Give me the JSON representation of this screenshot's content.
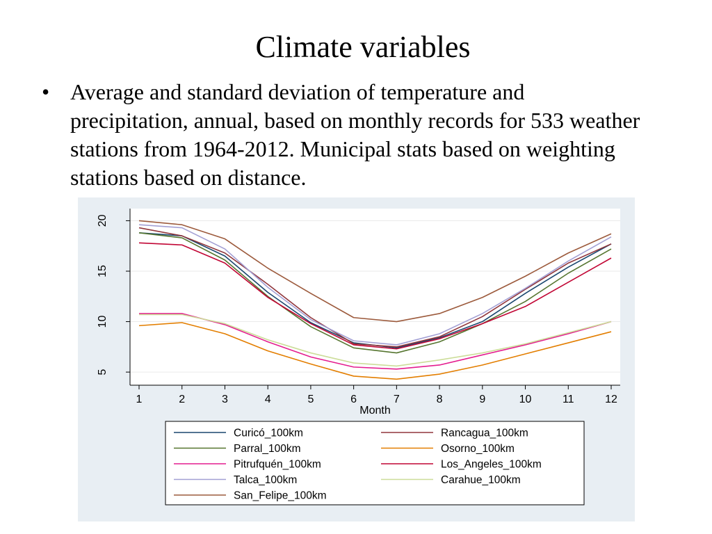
{
  "slide": {
    "title": "Climate variables",
    "bullet": "Average and standard deviation of temperature and precipitation, annual, based on monthly records for 533 weather stations from 1964-2012. Municipal stats based on weighting stations based on distance."
  },
  "chart_data": {
    "type": "line",
    "title": "",
    "xlabel": "Month",
    "ylabel": "",
    "x": [
      1,
      2,
      3,
      4,
      5,
      6,
      7,
      8,
      9,
      10,
      11,
      12
    ],
    "xlim": [
      1,
      12
    ],
    "ylim": [
      3.7,
      21.2
    ],
    "yticks": [
      5,
      10,
      15,
      20
    ],
    "grid": true,
    "legend_position": "bottom",
    "series": [
      {
        "name": "Curicó_100km",
        "color": "#1a476f",
        "values": [
          18.8,
          18.5,
          16.5,
          12.9,
          9.9,
          7.9,
          7.4,
          8.4,
          10.0,
          12.8,
          15.4,
          17.7
        ]
      },
      {
        "name": "Rancagua_100km",
        "color": "#90353b",
        "values": [
          19.3,
          18.5,
          16.8,
          13.7,
          10.4,
          7.8,
          7.5,
          8.5,
          10.5,
          13.2,
          15.8,
          17.7
        ]
      },
      {
        "name": "Parral_100km",
        "color": "#55752f",
        "values": [
          18.8,
          18.3,
          16.1,
          12.5,
          9.5,
          7.4,
          6.9,
          8.0,
          9.8,
          12.0,
          14.8,
          17.2
        ]
      },
      {
        "name": "Osorno_100km",
        "color": "#e37e00",
        "values": [
          9.6,
          9.9,
          8.8,
          7.1,
          5.8,
          4.6,
          4.3,
          4.8,
          5.7,
          6.8,
          7.9,
          9.0
        ]
      },
      {
        "name": "Pitrufquén_100km",
        "color": "#e41d8f",
        "values": [
          10.8,
          10.8,
          9.7,
          8.0,
          6.5,
          5.5,
          5.3,
          5.7,
          6.7,
          7.7,
          8.8,
          10.0
        ]
      },
      {
        "name": "Los_Angeles_100km",
        "color": "#c10534",
        "values": [
          17.8,
          17.6,
          15.8,
          12.4,
          9.8,
          7.7,
          7.3,
          8.3,
          9.8,
          11.5,
          13.9,
          16.3
        ]
      },
      {
        "name": "Talca_100km",
        "color": "#a29fd4",
        "values": [
          19.6,
          19.3,
          17.2,
          13.4,
          10.2,
          8.1,
          7.7,
          8.8,
          10.8,
          13.3,
          16.0,
          18.4
        ]
      },
      {
        "name": "Carahue_100km",
        "color": "#ccdd99",
        "values": [
          10.7,
          10.7,
          9.8,
          8.2,
          6.9,
          5.9,
          5.6,
          6.2,
          6.9,
          7.8,
          8.9,
          10.0
        ]
      },
      {
        "name": "San_Felipe_100km",
        "color": "#9c5a3c",
        "values": [
          20.0,
          19.6,
          18.2,
          15.3,
          12.8,
          10.4,
          10.0,
          10.8,
          12.4,
          14.5,
          16.8,
          18.7
        ]
      }
    ]
  }
}
